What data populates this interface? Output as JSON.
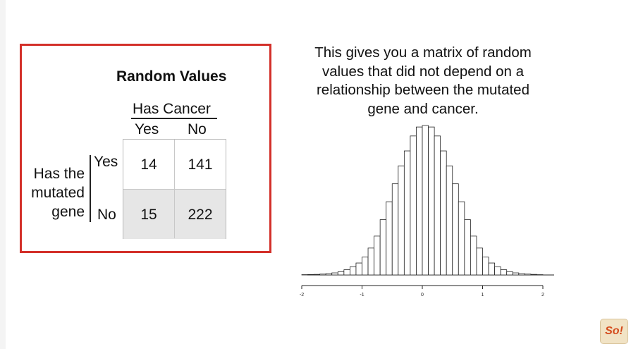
{
  "table": {
    "title": "Random Values",
    "column_group": "Has Cancer",
    "columns": [
      "Yes",
      "No"
    ],
    "row_group": "Has the\nmutated\ngene",
    "rows": [
      "Yes",
      "No"
    ],
    "cells": [
      [
        "14",
        "141"
      ],
      [
        "15",
        "222"
      ]
    ]
  },
  "caption": "This gives you a matrix of random\nvalues that did not depend on a\nrelationship between the mutated\ngene and cancer.",
  "histogram": {
    "x_ticks": [
      "-2",
      "-1",
      "0",
      "1",
      "2"
    ]
  },
  "chart_data": {
    "type": "bar",
    "title": "",
    "xlabel": "",
    "ylabel": "",
    "xlim": [
      -2,
      2
    ],
    "bin_width": 0.1,
    "bin_starts": [
      -2.0,
      -1.9,
      -1.8,
      -1.7,
      -1.6,
      -1.5,
      -1.4,
      -1.3,
      -1.2,
      -1.1,
      -1.0,
      -0.9,
      -0.8,
      -0.7,
      -0.6,
      -0.5,
      -0.4,
      -0.3,
      -0.2,
      -0.1,
      0.0,
      0.1,
      0.2,
      0.3,
      0.4,
      0.5,
      0.6,
      0.7,
      0.8,
      0.9,
      1.0,
      1.1,
      1.2,
      1.3,
      1.4,
      1.5,
      1.6,
      1.7,
      1.8,
      1.9
    ],
    "values": [
      0.2,
      0.3,
      0.4,
      0.6,
      0.9,
      1.4,
      2.2,
      3.5,
      5.5,
      8.0,
      12,
      18,
      26,
      37,
      49,
      61,
      73,
      83,
      93,
      99,
      100,
      99,
      93,
      83,
      73,
      61,
      49,
      37,
      26,
      18,
      12,
      8.0,
      5.5,
      3.5,
      2.2,
      1.4,
      0.9,
      0.6,
      0.4,
      0.2
    ]
  },
  "logo": {
    "text": "So!"
  },
  "colors": {
    "frame": "#d3302a",
    "shade": "#e6e6e6"
  }
}
